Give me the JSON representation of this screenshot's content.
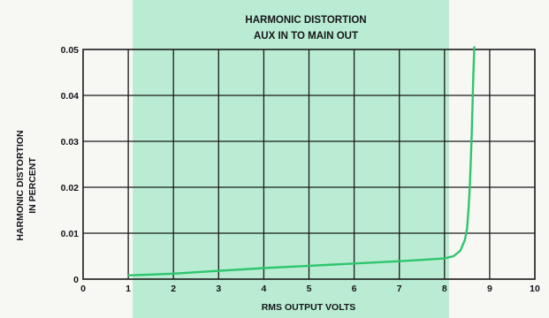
{
  "colors": {
    "background": "#f7f7f4",
    "band": "#b9ecd2",
    "curve": "#2ec56e",
    "grid": "#1a1a1a",
    "text": "#15151a"
  },
  "chart_data": {
    "type": "line",
    "title": "HARMONIC DISTORTION",
    "subtitle": "AUX IN TO MAIN OUT",
    "xlabel": "RMS OUTPUT VOLTS",
    "ylabel_lines": [
      "HARMONIC DISTORTION",
      "IN PERCENT"
    ],
    "xlim": [
      0,
      10
    ],
    "ylim": [
      0,
      0.05
    ],
    "x_ticks": [
      "0",
      "1",
      "2",
      "3",
      "4",
      "5",
      "6",
      "7",
      "8",
      "9",
      "10"
    ],
    "y_ticks": [
      "0",
      "0.01",
      "0.02",
      "0.03",
      "0.04",
      "0.05"
    ],
    "grid": true,
    "series": [
      {
        "x": [
          1,
          2,
          3,
          4,
          5,
          6,
          7,
          7.5,
          8,
          8.2,
          8.35,
          8.45,
          8.5,
          8.53,
          8.56,
          8.58,
          8.6,
          8.62,
          8.64,
          8.66
        ],
        "y": [
          0.0008,
          0.0012,
          0.0018,
          0.0024,
          0.0029,
          0.0034,
          0.0039,
          0.0042,
          0.0045,
          0.005,
          0.0062,
          0.0085,
          0.011,
          0.015,
          0.02,
          0.025,
          0.031,
          0.038,
          0.045,
          0.0505
        ]
      }
    ]
  }
}
